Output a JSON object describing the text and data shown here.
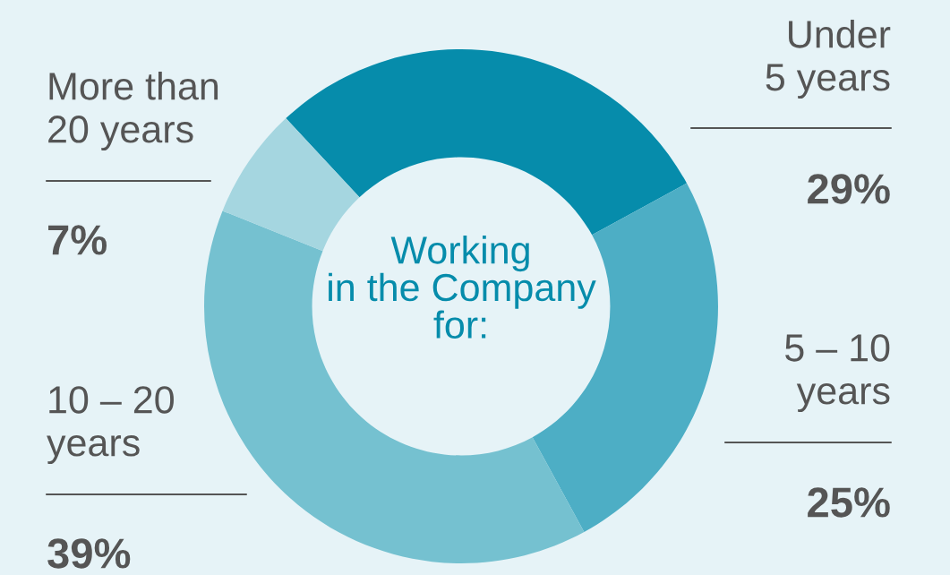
{
  "chart_data": {
    "type": "donut",
    "title": "Working\nin the Company\nfor:",
    "categories": [
      "Under\n5 years",
      "5 – 10\nyears",
      "10 – 20\nyears",
      "More than\n20 years"
    ],
    "values": [
      29,
      25,
      39,
      7
    ],
    "value_labels": [
      "29%",
      "25%",
      "39%",
      "7%"
    ],
    "colors": [
      "#068cab",
      "#4daec5",
      "#75c1d0",
      "#a5d6e0"
    ]
  }
}
